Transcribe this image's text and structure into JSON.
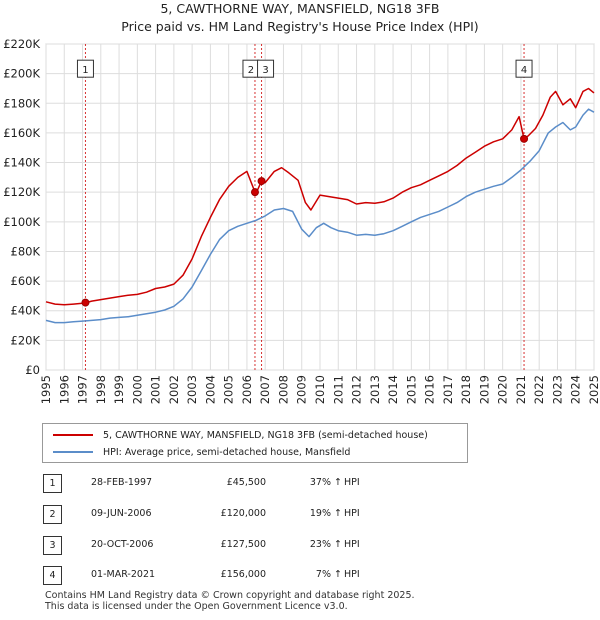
{
  "title_line1": "5, CAWTHORNE WAY, MANSFIELD, NG18 3FB",
  "title_line2": "Price paid vs. HM Land Registry's House Price Index (HPI)",
  "colors": {
    "property": "#cc0000",
    "hpi": "#5b8dc9",
    "grid": "#dddddd",
    "marker_line": "#cc0000"
  },
  "chart_data": {
    "type": "line",
    "title": "Price paid vs. HM Land Registry's House Price Index (HPI)",
    "xlabel": "",
    "ylabel": "",
    "xlim": [
      1995,
      2025
    ],
    "ylim": [
      0,
      220000
    ],
    "grid": true,
    "x_ticks": [
      "1995",
      "1996",
      "1997",
      "1998",
      "1999",
      "2000",
      "2001",
      "2002",
      "2003",
      "2004",
      "2005",
      "2006",
      "2007",
      "2008",
      "2009",
      "2010",
      "2011",
      "2012",
      "2013",
      "2014",
      "2015",
      "2016",
      "2017",
      "2018",
      "2019",
      "2020",
      "2021",
      "2022",
      "2023",
      "2024",
      "2025"
    ],
    "y_ticks": [
      {
        "value": 0,
        "label": "£0"
      },
      {
        "value": 20000,
        "label": "£20K"
      },
      {
        "value": 40000,
        "label": "£40K"
      },
      {
        "value": 60000,
        "label": "£60K"
      },
      {
        "value": 80000,
        "label": "£80K"
      },
      {
        "value": 100000,
        "label": "£100K"
      },
      {
        "value": 120000,
        "label": "£120K"
      },
      {
        "value": 140000,
        "label": "£140K"
      },
      {
        "value": 160000,
        "label": "£160K"
      },
      {
        "value": 180000,
        "label": "£180K"
      },
      {
        "value": 200000,
        "label": "£200K"
      },
      {
        "value": 220000,
        "label": "£220K"
      }
    ],
    "series": [
      {
        "name": "5, CAWTHORNE WAY, MANSFIELD, NG18 3FB (semi-detached house)",
        "color": "#cc0000",
        "points": [
          [
            1995.0,
            46000
          ],
          [
            1995.5,
            44500
          ],
          [
            1996.0,
            44000
          ],
          [
            1996.5,
            44500
          ],
          [
            1997.0,
            45000
          ],
          [
            1997.2,
            45500
          ],
          [
            1997.5,
            46500
          ],
          [
            1998.0,
            47500
          ],
          [
            1998.5,
            48500
          ],
          [
            1999.0,
            49500
          ],
          [
            1999.5,
            50500
          ],
          [
            2000.0,
            51000
          ],
          [
            2000.5,
            52500
          ],
          [
            2001.0,
            55000
          ],
          [
            2001.5,
            56000
          ],
          [
            2002.0,
            58000
          ],
          [
            2002.5,
            64000
          ],
          [
            2003.0,
            75000
          ],
          [
            2003.5,
            90000
          ],
          [
            2004.0,
            103000
          ],
          [
            2004.5,
            115000
          ],
          [
            2005.0,
            124000
          ],
          [
            2005.5,
            130000
          ],
          [
            2006.0,
            134000
          ],
          [
            2006.44,
            120000
          ],
          [
            2006.6,
            122000
          ],
          [
            2006.8,
            127500
          ],
          [
            2007.0,
            126500
          ],
          [
            2007.5,
            134000
          ],
          [
            2007.9,
            136500
          ],
          [
            2008.3,
            133000
          ],
          [
            2008.8,
            128000
          ],
          [
            2009.2,
            113000
          ],
          [
            2009.5,
            108000
          ],
          [
            2010.0,
            118000
          ],
          [
            2010.5,
            117000
          ],
          [
            2011.0,
            116000
          ],
          [
            2011.5,
            115000
          ],
          [
            2012.0,
            112000
          ],
          [
            2012.5,
            113000
          ],
          [
            2013.0,
            112500
          ],
          [
            2013.5,
            113500
          ],
          [
            2014.0,
            116000
          ],
          [
            2014.5,
            120000
          ],
          [
            2015.0,
            123000
          ],
          [
            2015.5,
            125000
          ],
          [
            2016.0,
            128000
          ],
          [
            2016.5,
            131000
          ],
          [
            2017.0,
            134000
          ],
          [
            2017.5,
            138000
          ],
          [
            2018.0,
            143000
          ],
          [
            2018.5,
            147000
          ],
          [
            2019.0,
            151000
          ],
          [
            2019.5,
            154000
          ],
          [
            2020.0,
            156000
          ],
          [
            2020.5,
            162000
          ],
          [
            2020.9,
            171000
          ],
          [
            2021.17,
            156000
          ],
          [
            2021.4,
            158000
          ],
          [
            2021.8,
            163000
          ],
          [
            2022.2,
            172000
          ],
          [
            2022.6,
            184000
          ],
          [
            2022.9,
            188000
          ],
          [
            2023.3,
            179000
          ],
          [
            2023.7,
            183000
          ],
          [
            2024.0,
            177000
          ],
          [
            2024.4,
            188000
          ],
          [
            2024.7,
            190000
          ],
          [
            2025.0,
            187000
          ]
        ]
      },
      {
        "name": "HPI: Average price, semi-detached house, Mansfield",
        "color": "#5b8dc9",
        "points": [
          [
            1995.0,
            33500
          ],
          [
            1995.5,
            32000
          ],
          [
            1996.0,
            32000
          ],
          [
            1996.5,
            32500
          ],
          [
            1997.0,
            33000
          ],
          [
            1997.5,
            33500
          ],
          [
            1998.0,
            34000
          ],
          [
            1998.5,
            35000
          ],
          [
            1999.0,
            35500
          ],
          [
            1999.5,
            36000
          ],
          [
            2000.0,
            37000
          ],
          [
            2000.5,
            38000
          ],
          [
            2001.0,
            39000
          ],
          [
            2001.5,
            40500
          ],
          [
            2002.0,
            43000
          ],
          [
            2002.5,
            48000
          ],
          [
            2003.0,
            56000
          ],
          [
            2003.5,
            67000
          ],
          [
            2004.0,
            78000
          ],
          [
            2004.5,
            88000
          ],
          [
            2005.0,
            94000
          ],
          [
            2005.5,
            97000
          ],
          [
            2006.0,
            99000
          ],
          [
            2006.5,
            101000
          ],
          [
            2007.0,
            104000
          ],
          [
            2007.5,
            108000
          ],
          [
            2008.0,
            109000
          ],
          [
            2008.5,
            107000
          ],
          [
            2009.0,
            95000
          ],
          [
            2009.4,
            90000
          ],
          [
            2009.8,
            96000
          ],
          [
            2010.2,
            99000
          ],
          [
            2010.6,
            96000
          ],
          [
            2011.0,
            94000
          ],
          [
            2011.5,
            93000
          ],
          [
            2012.0,
            91000
          ],
          [
            2012.5,
            91500
          ],
          [
            2013.0,
            91000
          ],
          [
            2013.5,
            92000
          ],
          [
            2014.0,
            94000
          ],
          [
            2014.5,
            97000
          ],
          [
            2015.0,
            100000
          ],
          [
            2015.5,
            103000
          ],
          [
            2016.0,
            105000
          ],
          [
            2016.5,
            107000
          ],
          [
            2017.0,
            110000
          ],
          [
            2017.5,
            113000
          ],
          [
            2018.0,
            117000
          ],
          [
            2018.5,
            120000
          ],
          [
            2019.0,
            122000
          ],
          [
            2019.5,
            124000
          ],
          [
            2020.0,
            125500
          ],
          [
            2020.5,
            130000
          ],
          [
            2021.0,
            135000
          ],
          [
            2021.5,
            141000
          ],
          [
            2022.0,
            148000
          ],
          [
            2022.5,
            160000
          ],
          [
            2022.9,
            164000
          ],
          [
            2023.3,
            167000
          ],
          [
            2023.7,
            162000
          ],
          [
            2024.0,
            164000
          ],
          [
            2024.4,
            172000
          ],
          [
            2024.7,
            176000
          ],
          [
            2025.0,
            174000
          ]
        ]
      }
    ],
    "transactions": [
      {
        "n": "1",
        "x": 1997.16,
        "price": 45500
      },
      {
        "n": "2",
        "x": 2006.44,
        "price": 120000
      },
      {
        "n": "3",
        "x": 2006.8,
        "price": 127500
      },
      {
        "n": "4",
        "x": 2021.17,
        "price": 156000
      }
    ]
  },
  "legend": {
    "property_label": "5, CAWTHORNE WAY, MANSFIELD, NG18 3FB (semi-detached house)",
    "hpi_label": "HPI: Average price, semi-detached house, Mansfield"
  },
  "table": [
    {
      "n": "1",
      "date": "28-FEB-1997",
      "price": "£45,500",
      "pct": "37%",
      "arrow": "↑",
      "hpi": "HPI"
    },
    {
      "n": "2",
      "date": "09-JUN-2006",
      "price": "£120,000",
      "pct": "19%",
      "arrow": "↑",
      "hpi": "HPI"
    },
    {
      "n": "3",
      "date": "20-OCT-2006",
      "price": "£127,500",
      "pct": "23%",
      "arrow": "↑",
      "hpi": "HPI"
    },
    {
      "n": "4",
      "date": "01-MAR-2021",
      "price": "£156,000",
      "pct": "7%",
      "arrow": "↑",
      "hpi": "HPI"
    }
  ],
  "footer_line1": "Contains HM Land Registry data © Crown copyright and database right 2025.",
  "footer_line2": "This data is licensed under the Open Government Licence v3.0."
}
